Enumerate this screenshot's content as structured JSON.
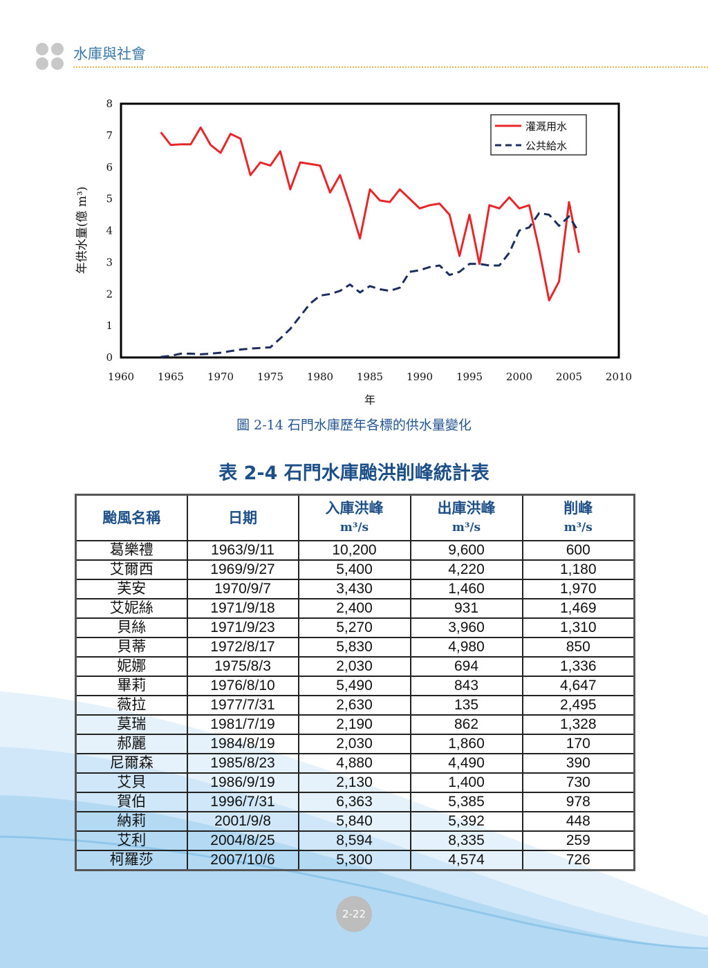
{
  "header": {
    "title": "水庫與社會"
  },
  "figure": {
    "caption": "圖 2-14  石門水庫歷年各標的供水量變化"
  },
  "chart_data": {
    "type": "line",
    "title": "",
    "xlabel": "年",
    "ylabel": "年供水量(億 m³)",
    "xlim": [
      1960,
      2010
    ],
    "ylim": [
      0,
      8
    ],
    "xticks": [
      1960,
      1965,
      1970,
      1975,
      1980,
      1985,
      1990,
      1995,
      2000,
      2005,
      2010
    ],
    "yticks": [
      0,
      1,
      2,
      3,
      4,
      5,
      6,
      7,
      8
    ],
    "legend_position": "top-right",
    "series": [
      {
        "name": "灌溉用水",
        "color": "#e8262a",
        "style": "solid",
        "x": [
          1964,
          1965,
          1966,
          1967,
          1968,
          1969,
          1970,
          1971,
          1972,
          1973,
          1974,
          1975,
          1976,
          1977,
          1978,
          1979,
          1980,
          1981,
          1982,
          1983,
          1984,
          1985,
          1986,
          1987,
          1988,
          1989,
          1990,
          1991,
          1992,
          1993,
          1994,
          1995,
          1996,
          1997,
          1998,
          1999,
          2000,
          2001,
          2002,
          2003,
          2004,
          2005,
          2006
        ],
        "y": [
          7.1,
          6.7,
          6.72,
          6.72,
          7.25,
          6.7,
          6.45,
          7.05,
          6.9,
          5.75,
          6.15,
          6.05,
          6.5,
          5.3,
          6.15,
          6.1,
          6.05,
          5.2,
          5.75,
          4.8,
          3.75,
          5.3,
          4.95,
          4.9,
          5.3,
          5.0,
          4.7,
          4.8,
          4.85,
          4.5,
          3.2,
          4.5,
          2.95,
          4.8,
          4.7,
          5.05,
          4.7,
          4.8,
          3.4,
          1.8,
          2.4,
          4.9,
          3.3
        ]
      },
      {
        "name": "公共給水",
        "color": "#1c2d5e",
        "style": "dashed",
        "x": [
          1964,
          1965,
          1966,
          1967,
          1968,
          1969,
          1970,
          1971,
          1972,
          1973,
          1974,
          1975,
          1976,
          1977,
          1978,
          1979,
          1980,
          1981,
          1982,
          1983,
          1984,
          1985,
          1986,
          1987,
          1988,
          1989,
          1990,
          1991,
          1992,
          1993,
          1994,
          1995,
          1996,
          1997,
          1998,
          1999,
          2000,
          2001,
          2002,
          2003,
          2004,
          2005,
          2006
        ],
        "y": [
          0.02,
          0.05,
          0.12,
          0.12,
          0.1,
          0.12,
          0.15,
          0.2,
          0.25,
          0.28,
          0.3,
          0.32,
          0.6,
          0.9,
          1.3,
          1.7,
          1.95,
          2.0,
          2.1,
          2.3,
          2.05,
          2.25,
          2.15,
          2.1,
          2.2,
          2.7,
          2.75,
          2.85,
          2.9,
          2.6,
          2.7,
          2.95,
          2.95,
          2.9,
          2.9,
          3.3,
          4.0,
          4.1,
          4.55,
          4.5,
          4.15,
          4.45,
          3.95
        ]
      }
    ]
  },
  "table": {
    "title": "表 2-4  石門水庫颱洪削峰統計表",
    "headers": {
      "name": "颱風名稱",
      "date": "日期",
      "inflow": "入庫洪峰",
      "outflow": "出庫洪峰",
      "reduction": "削峰",
      "unit": "m³/s"
    },
    "rows": [
      [
        "葛樂禮",
        "1963/9/11",
        "10,200",
        "9,600",
        "600"
      ],
      [
        "艾爾西",
        "1969/9/27",
        "5,400",
        "4,220",
        "1,180"
      ],
      [
        "芙安",
        "1970/9/7",
        "3,430",
        "1,460",
        "1,970"
      ],
      [
        "艾妮絲",
        "1971/9/18",
        "2,400",
        "931",
        "1,469"
      ],
      [
        "貝絲",
        "1971/9/23",
        "5,270",
        "3,960",
        "1,310"
      ],
      [
        "貝蒂",
        "1972/8/17",
        "5,830",
        "4,980",
        "850"
      ],
      [
        "妮娜",
        "1975/8/3",
        "2,030",
        "694",
        "1,336"
      ],
      [
        "畢莉",
        "1976/8/10",
        "5,490",
        "843",
        "4,647"
      ],
      [
        "薇拉",
        "1977/7/31",
        "2,630",
        "135",
        "2,495"
      ],
      [
        "莫瑞",
        "1981/7/19",
        "2,190",
        "862",
        "1,328"
      ],
      [
        "郝麗",
        "1984/8/19",
        "2,030",
        "1,860",
        "170"
      ],
      [
        "尼爾森",
        "1985/8/23",
        "4,880",
        "4,490",
        "390"
      ],
      [
        "艾貝",
        "1986/9/19",
        "2,130",
        "1,400",
        "730"
      ],
      [
        "賀伯",
        "1996/7/31",
        "6,363",
        "5,385",
        "978"
      ],
      [
        "納莉",
        "2001/9/8",
        "5,840",
        "5,392",
        "448"
      ],
      [
        "艾利",
        "2004/8/25",
        "8,594",
        "8,335",
        "259"
      ],
      [
        "柯羅莎",
        "2007/10/6",
        "5,300",
        "4,574",
        "726"
      ]
    ]
  },
  "footer": {
    "page_number": "2-22"
  }
}
